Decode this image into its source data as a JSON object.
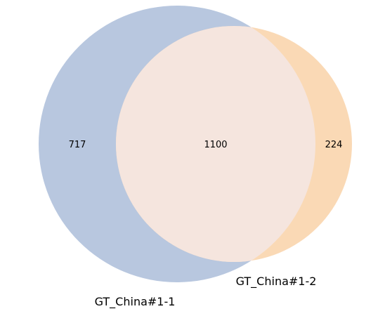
{
  "sets": [
    {
      "name": "GT_China#1-1",
      "color": "#b8c7df"
    },
    {
      "name": "GT_China#1-2",
      "color": "#fad9b5"
    }
  ],
  "regions": {
    "only_a": "717",
    "intersection": "1100",
    "only_b": "224"
  },
  "intersection_color": "#f5e5de"
}
